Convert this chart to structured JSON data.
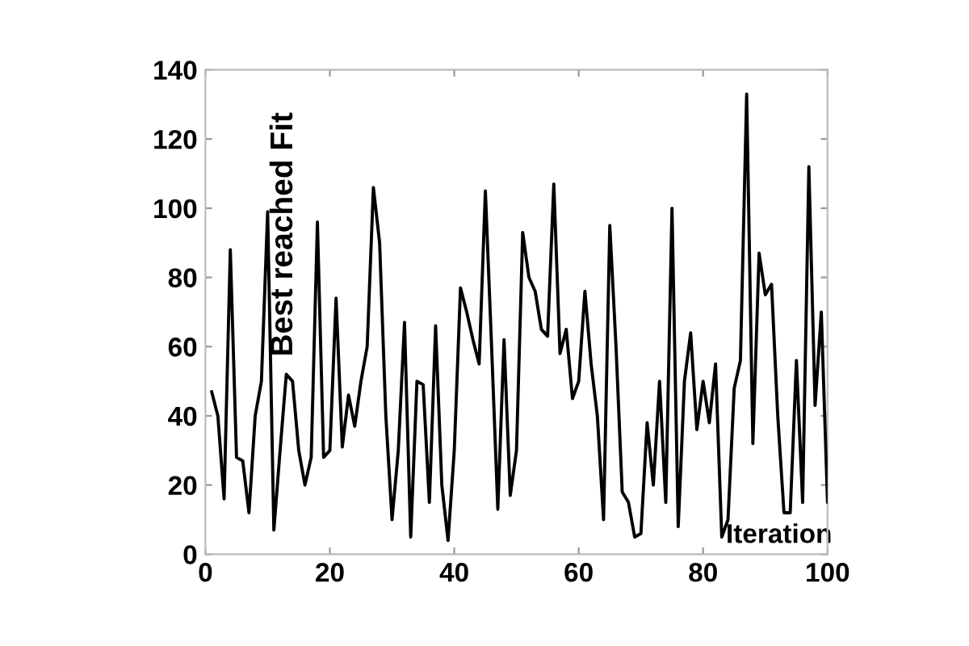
{
  "chart_data": {
    "type": "line",
    "xlabel": "Iteration",
    "ylabel": "Best reached Fit",
    "x": [
      1,
      2,
      3,
      4,
      5,
      6,
      7,
      8,
      9,
      10,
      11,
      12,
      13,
      14,
      15,
      16,
      17,
      18,
      19,
      20,
      21,
      22,
      23,
      24,
      25,
      26,
      27,
      28,
      29,
      30,
      31,
      32,
      33,
      34,
      35,
      36,
      37,
      38,
      39,
      40,
      41,
      42,
      43,
      44,
      45,
      46,
      47,
      48,
      49,
      50,
      51,
      52,
      53,
      54,
      55,
      56,
      57,
      58,
      59,
      60,
      61,
      62,
      63,
      64,
      65,
      66,
      67,
      68,
      69,
      70,
      71,
      72,
      73,
      74,
      75,
      76,
      77,
      78,
      79,
      80,
      81,
      82,
      83,
      84,
      85,
      86,
      87,
      88,
      89,
      90,
      91,
      92,
      93,
      94,
      95,
      96,
      97,
      98,
      99,
      100
    ],
    "series": [
      {
        "color": "#000000",
        "values": [
          47,
          40,
          16,
          88,
          28,
          27,
          12,
          40,
          50,
          99,
          7,
          30,
          52,
          50,
          30,
          20,
          28,
          96,
          28,
          30,
          74,
          31,
          46,
          37,
          50,
          60,
          106,
          90,
          40,
          10,
          30,
          67,
          5,
          50,
          49,
          15,
          66,
          20,
          4,
          30,
          77,
          70,
          62,
          55,
          105,
          60,
          13,
          62,
          17,
          30,
          93,
          80,
          76,
          65,
          63,
          107,
          58,
          65,
          45,
          50,
          76,
          55,
          40,
          10,
          95,
          60,
          18,
          15,
          5,
          6,
          38,
          20,
          50,
          15,
          100,
          8,
          50,
          64,
          36,
          50,
          38,
          55,
          5,
          10,
          48,
          56,
          133,
          32,
          87,
          75,
          78,
          40,
          12,
          12,
          56,
          15,
          112,
          43,
          70,
          15
        ]
      }
    ],
    "xlim": [
      0,
      100
    ],
    "ylim": [
      0,
      140
    ],
    "xticks": [
      0,
      20,
      40,
      60,
      80,
      100
    ],
    "yticks": [
      0,
      20,
      40,
      60,
      80,
      100,
      120,
      140
    ],
    "grid": false,
    "legend": false,
    "marker": "none",
    "line_style": "solid"
  }
}
